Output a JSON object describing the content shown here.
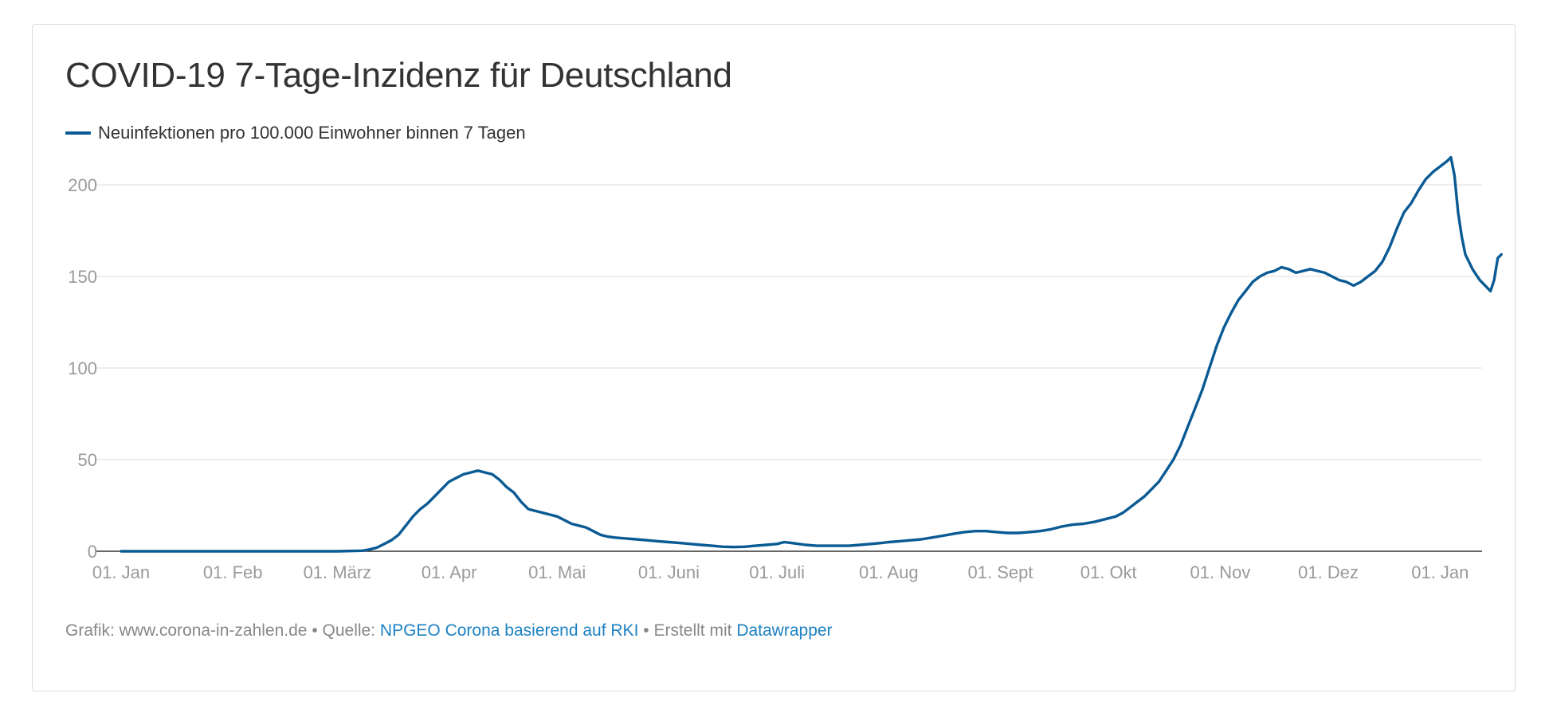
{
  "header": {
    "title": "COVID-19 7-Tage-Inzidenz für Deutschland"
  },
  "footer": {
    "grafik": "Grafik: www.corona-in-zahlen.de",
    "sep1": "•",
    "quelle_label": "Quelle:",
    "quelle_link": "NPGEO Corona basierend auf RKI",
    "sep2": "•",
    "erstellt_label": "Erstellt mit",
    "erstellt_link": "Datawrapper"
  },
  "colors": {
    "line": "#0a5a94",
    "grid": "#e3e3e3",
    "axis": "#333333",
    "link": "#1d81c2"
  },
  "chart_data": {
    "type": "line",
    "title": "COVID-19 7-Tage-Inzidenz für Deutschland",
    "xlabel": "",
    "ylabel": "",
    "grid": true,
    "legend_position": "top-left",
    "ylim": [
      0,
      210
    ],
    "yticks": [
      0,
      50,
      100,
      150,
      200
    ],
    "xlim": [
      0,
      373
    ],
    "xticks": [
      {
        "day": 0,
        "label": "01. Jan"
      },
      {
        "day": 31,
        "label": "01. Feb"
      },
      {
        "day": 60,
        "label": "01. März"
      },
      {
        "day": 91,
        "label": "01. Apr"
      },
      {
        "day": 121,
        "label": "01. Mai"
      },
      {
        "day": 152,
        "label": "01. Juni"
      },
      {
        "day": 182,
        "label": "01. Juli"
      },
      {
        "day": 213,
        "label": "01. Aug"
      },
      {
        "day": 244,
        "label": "01. Sept"
      },
      {
        "day": 274,
        "label": "01. Okt"
      },
      {
        "day": 305,
        "label": "01. Nov"
      },
      {
        "day": 335,
        "label": "01. Dez"
      },
      {
        "day": 366,
        "label": "01. Jan"
      }
    ],
    "series": [
      {
        "name": "Neuinfektionen pro 100.000 Einwohner binnen 7 Tagen",
        "x_unit": "day since 01. Jan",
        "points": [
          [
            0,
            0
          ],
          [
            30,
            0
          ],
          [
            60,
            0
          ],
          [
            67,
            0.3
          ],
          [
            69,
            1
          ],
          [
            71,
            2
          ],
          [
            73,
            4
          ],
          [
            75,
            6
          ],
          [
            77,
            9
          ],
          [
            79,
            14
          ],
          [
            81,
            19
          ],
          [
            83,
            23
          ],
          [
            85,
            26
          ],
          [
            87,
            30
          ],
          [
            89,
            34
          ],
          [
            91,
            38
          ],
          [
            93,
            40
          ],
          [
            95,
            42
          ],
          [
            97,
            43
          ],
          [
            99,
            44
          ],
          [
            101,
            43
          ],
          [
            103,
            42
          ],
          [
            105,
            39
          ],
          [
            107,
            35
          ],
          [
            109,
            32
          ],
          [
            111,
            27
          ],
          [
            113,
            23
          ],
          [
            115,
            22
          ],
          [
            117,
            21
          ],
          [
            119,
            20
          ],
          [
            121,
            19
          ],
          [
            123,
            17
          ],
          [
            125,
            15
          ],
          [
            127,
            14
          ],
          [
            129,
            13
          ],
          [
            131,
            11
          ],
          [
            133,
            9
          ],
          [
            135,
            8
          ],
          [
            137,
            7.5
          ],
          [
            140,
            7
          ],
          [
            143,
            6.5
          ],
          [
            146,
            6
          ],
          [
            149,
            5.5
          ],
          [
            152,
            5
          ],
          [
            155,
            4.5
          ],
          [
            158,
            4
          ],
          [
            161,
            3.5
          ],
          [
            164,
            3
          ],
          [
            167,
            2.5
          ],
          [
            170,
            2.3
          ],
          [
            173,
            2.5
          ],
          [
            176,
            3
          ],
          [
            179,
            3.5
          ],
          [
            182,
            4
          ],
          [
            184,
            5
          ],
          [
            186,
            4.5
          ],
          [
            188,
            4
          ],
          [
            190,
            3.5
          ],
          [
            193,
            3
          ],
          [
            196,
            3
          ],
          [
            199,
            3
          ],
          [
            202,
            3
          ],
          [
            205,
            3.5
          ],
          [
            208,
            4
          ],
          [
            211,
            4.5
          ],
          [
            213,
            5
          ],
          [
            216,
            5.5
          ],
          [
            219,
            6
          ],
          [
            222,
            6.5
          ],
          [
            225,
            7.5
          ],
          [
            228,
            8.5
          ],
          [
            231,
            9.5
          ],
          [
            234,
            10.5
          ],
          [
            237,
            11
          ],
          [
            240,
            11
          ],
          [
            243,
            10.5
          ],
          [
            246,
            10
          ],
          [
            249,
            10
          ],
          [
            252,
            10.5
          ],
          [
            255,
            11
          ],
          [
            258,
            12
          ],
          [
            261,
            13.5
          ],
          [
            264,
            14.5
          ],
          [
            267,
            15
          ],
          [
            270,
            16
          ],
          [
            273,
            17.5
          ],
          [
            276,
            19
          ],
          [
            278,
            21
          ],
          [
            280,
            24
          ],
          [
            282,
            27
          ],
          [
            284,
            30
          ],
          [
            286,
            34
          ],
          [
            288,
            38
          ],
          [
            290,
            44
          ],
          [
            292,
            50
          ],
          [
            294,
            58
          ],
          [
            296,
            68
          ],
          [
            298,
            78
          ],
          [
            300,
            88
          ],
          [
            302,
            100
          ],
          [
            304,
            112
          ],
          [
            306,
            122
          ],
          [
            308,
            130
          ],
          [
            310,
            137
          ],
          [
            312,
            142
          ],
          [
            314,
            147
          ],
          [
            316,
            150
          ],
          [
            318,
            152
          ],
          [
            320,
            153
          ],
          [
            322,
            155
          ],
          [
            324,
            154
          ],
          [
            326,
            152
          ],
          [
            328,
            153
          ],
          [
            330,
            154
          ],
          [
            332,
            153
          ],
          [
            334,
            152
          ],
          [
            336,
            150
          ],
          [
            338,
            148
          ],
          [
            340,
            147
          ],
          [
            342,
            145
          ],
          [
            344,
            147
          ],
          [
            346,
            150
          ],
          [
            348,
            153
          ],
          [
            350,
            158
          ],
          [
            352,
            166
          ],
          [
            354,
            176
          ],
          [
            356,
            185
          ],
          [
            358,
            190
          ],
          [
            360,
            197
          ],
          [
            362,
            203
          ],
          [
            364,
            207
          ],
          [
            366,
            210
          ],
          [
            368,
            213
          ],
          [
            369,
            215
          ],
          [
            370,
            205
          ],
          [
            371,
            185
          ],
          [
            372,
            172
          ],
          [
            373,
            162
          ],
          [
            374,
            158
          ],
          [
            375,
            154
          ],
          [
            376,
            151
          ],
          [
            377,
            148
          ],
          [
            378,
            146
          ],
          [
            379,
            144
          ],
          [
            380,
            142
          ],
          [
            381,
            148
          ],
          [
            382,
            160
          ],
          [
            383,
            162
          ]
        ]
      }
    ]
  }
}
